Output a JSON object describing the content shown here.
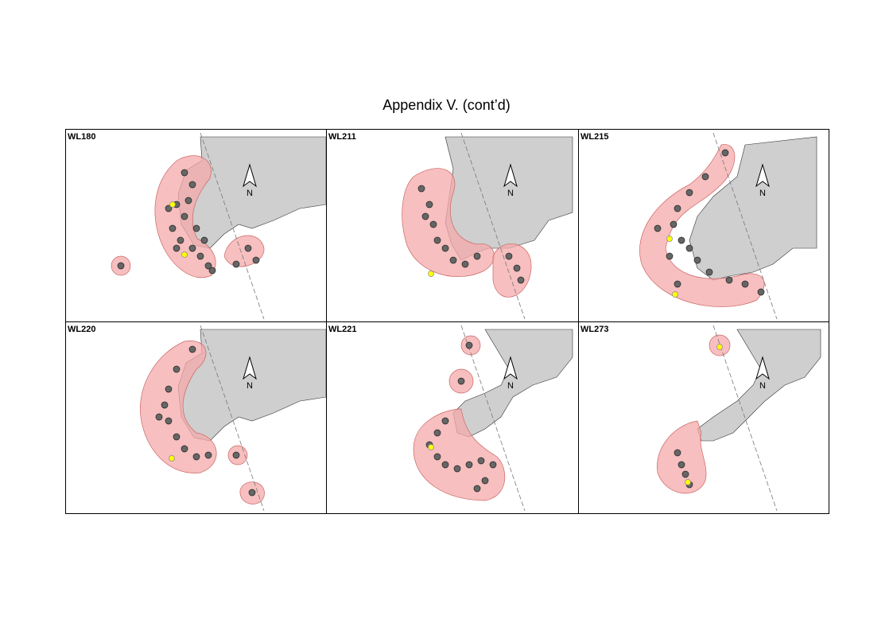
{
  "title": "Appendix V.  (cont’d)",
  "panels": [
    {
      "label": "WL180",
      "north": "N"
    },
    {
      "label": "WL211",
      "north": "N"
    },
    {
      "label": "WL215",
      "north": "N"
    },
    {
      "label": "WL220",
      "north": "N"
    },
    {
      "label": "WL221",
      "north": "N"
    },
    {
      "label": "WL273",
      "north": "N"
    }
  ]
}
